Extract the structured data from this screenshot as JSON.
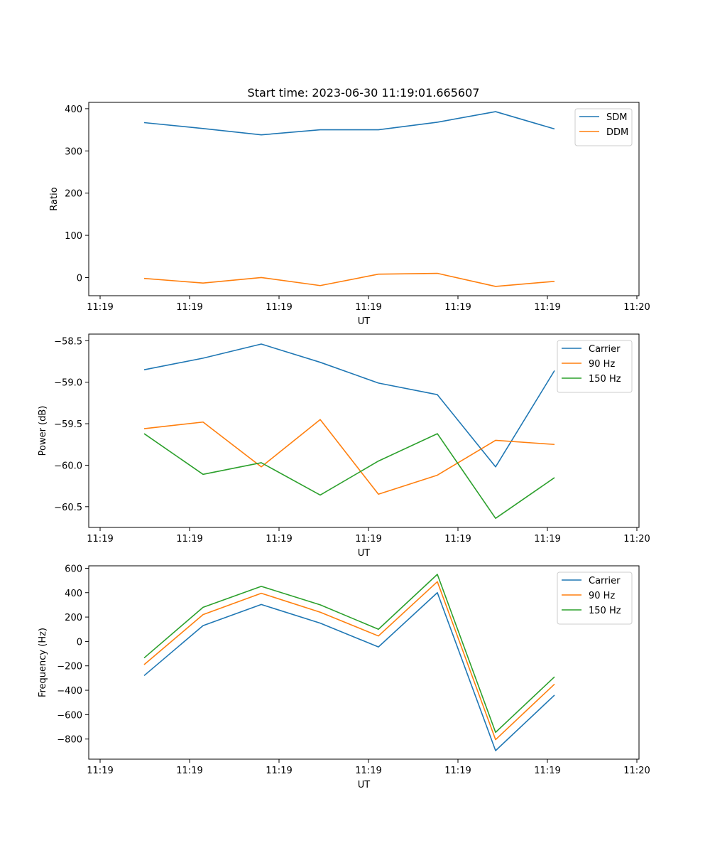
{
  "title": "Start time: 2023-06-30 11:19:01.665607",
  "colors": {
    "blue": "#1f77b4",
    "orange": "#ff7f0e",
    "green": "#2ca02c"
  },
  "chart_data": [
    {
      "type": "line",
      "xlabel": "UT",
      "ylabel": "Ratio",
      "x_tick_labels": [
        "11:19",
        "11:19",
        "11:19",
        "11:19",
        "11:19",
        "11:19",
        "11:20"
      ],
      "y_ticks": [
        0,
        100,
        200,
        300,
        400
      ],
      "y_tick_labels": [
        "0",
        "100",
        "200",
        "300",
        "400"
      ],
      "ylim": [
        -43,
        415
      ],
      "legend": "top-right",
      "series": [
        {
          "name": "SDM",
          "color": "#1f77b4",
          "values": [
            367,
            353,
            338,
            350,
            350,
            368,
            393,
            352
          ]
        },
        {
          "name": "DDM",
          "color": "#ff7f0e",
          "values": [
            -2,
            -13,
            0,
            -19,
            8,
            10,
            -21,
            -9
          ]
        }
      ]
    },
    {
      "type": "line",
      "xlabel": "UT",
      "ylabel": "Power (dB)",
      "x_tick_labels": [
        "11:19",
        "11:19",
        "11:19",
        "11:19",
        "11:19",
        "11:19",
        "11:20"
      ],
      "y_ticks": [
        -58.5,
        -59.0,
        -59.5,
        -60.0,
        -60.5
      ],
      "y_tick_labels": [
        "−58.5",
        "−59.0",
        "−59.5",
        "−60.0",
        "−60.5"
      ],
      "ylim": [
        -60.75,
        -58.42
      ],
      "legend": "top-right",
      "series": [
        {
          "name": "Carrier",
          "color": "#1f77b4",
          "values": [
            -58.85,
            -58.71,
            -58.54,
            -58.76,
            -59.01,
            -59.15,
            -60.02,
            -58.86
          ]
        },
        {
          "name": "90 Hz",
          "color": "#ff7f0e",
          "values": [
            -59.56,
            -59.48,
            -60.02,
            -59.45,
            -60.35,
            -60.12,
            -59.7,
            -59.75
          ]
        },
        {
          "name": "150 Hz",
          "color": "#2ca02c",
          "values": [
            -59.62,
            -60.11,
            -59.97,
            -60.36,
            -59.95,
            -59.62,
            -60.64,
            -60.15
          ]
        }
      ]
    },
    {
      "type": "line",
      "xlabel": "UT",
      "ylabel": "Frequency (Hz)",
      "x_tick_labels": [
        "11:19",
        "11:19",
        "11:19",
        "11:19",
        "11:19",
        "11:19",
        "11:20"
      ],
      "y_ticks": [
        600,
        400,
        200,
        0,
        -200,
        -400,
        -600,
        -800
      ],
      "y_tick_labels": [
        "600",
        "400",
        "200",
        "0",
        "−200",
        "−400",
        "−600",
        "−800"
      ],
      "ylim": [
        -965,
        620
      ],
      "legend": "top-right",
      "series": [
        {
          "name": "Carrier",
          "color": "#1f77b4",
          "values": [
            -280,
            130,
            303,
            150,
            -45,
            400,
            -895,
            -440
          ]
        },
        {
          "name": "90 Hz",
          "color": "#ff7f0e",
          "values": [
            -190,
            220,
            395,
            240,
            45,
            490,
            -805,
            -350
          ]
        },
        {
          "name": "150 Hz",
          "color": "#2ca02c",
          "values": [
            -135,
            280,
            452,
            300,
            100,
            550,
            -745,
            -290
          ]
        }
      ]
    }
  ]
}
